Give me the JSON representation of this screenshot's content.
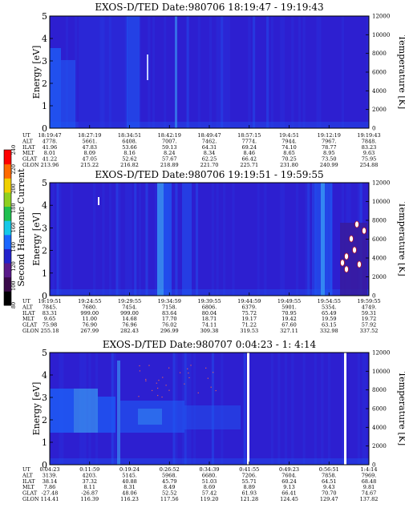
{
  "colors": {
    "background": "#2d1fd0",
    "low": "#2a2bd8",
    "mid": "#1e5cf5",
    "high": "#3aa4f6",
    "white": "#ffffff"
  },
  "colorbar": {
    "label": "Second Harmonic Current",
    "ticks": [
      "80",
      "100",
      "120",
      "140",
      "160",
      "180",
      "200",
      "220",
      "240"
    ],
    "colors": [
      "#000000",
      "#3a0a4a",
      "#5a1a8a",
      "#2222cc",
      "#1a66ff",
      "#15c8e8",
      "#20c050",
      "#8fd020",
      "#f0d000",
      "#ff6a00",
      "#ff0000"
    ]
  },
  "charts": [
    {
      "title": "EXOS-D/TED   Date:980706   18:19:47 - 19:19:43",
      "ylabel": "Energy [eV]",
      "y2label": "Temperature [K]",
      "yticks": [
        "0",
        "1",
        "2",
        "3",
        "4",
        "5"
      ],
      "y2ticks": [
        "0",
        "2000",
        "4000",
        "6000",
        "8000",
        "10000",
        "12000"
      ],
      "eph_rows": [
        {
          "label": "UT",
          "values": [
            "18:19:47",
            "18:27:19",
            "18:34:51",
            "18:42:19",
            "18:49:47",
            "18:57:15",
            "19:4:51",
            "19:12:19",
            "19:19:43"
          ]
        },
        {
          "label": "ALT",
          "values": [
            "4778.",
            "5661.",
            "6408.",
            "7007.",
            "7462.",
            "7774.",
            "7944.",
            "7967.",
            "7848."
          ]
        },
        {
          "label": "ILAT",
          "values": [
            "41.96",
            "47.83",
            "53.66",
            "59.13",
            "64.31",
            "69.24",
            "74.10",
            "78.77",
            "83.23"
          ]
        },
        {
          "label": "MLT",
          "values": [
            "8.01",
            "8.09",
            "8.16",
            "8.24",
            "8.34",
            "8.46",
            "8.65",
            "8.95",
            "9.63"
          ]
        },
        {
          "label": "GLAT",
          "values": [
            "41.22",
            "47.05",
            "52.62",
            "57.67",
            "62.25",
            "66.42",
            "70.25",
            "73.50",
            "75.95"
          ]
        },
        {
          "label": "GLON",
          "values": [
            "213.96",
            "215.22",
            "216.82",
            "218.89",
            "221.70",
            "225.71",
            "231.80",
            "240.99",
            "254.88"
          ]
        }
      ]
    },
    {
      "title": "EXOS-D/TED   Date:980706   19:19:51 - 19:59:55",
      "ylabel": "Energy [eV]",
      "y2label": "Temperature [K]",
      "yticks": [
        "0",
        "1",
        "2",
        "3",
        "4",
        "5"
      ],
      "y2ticks": [
        "0",
        "2000",
        "4000",
        "6000",
        "8000",
        "10000",
        "12000"
      ],
      "eph_rows": [
        {
          "label": "UT",
          "values": [
            "19:19:51",
            "19:24:55",
            "19:29:55",
            "19:34:59",
            "19:39:55",
            "19:44:59",
            "19:49:55",
            "19:54:55",
            "19:59:55"
          ]
        },
        {
          "label": "ALT",
          "values": [
            "7845.",
            "7680.",
            "7454.",
            "7158.",
            "6806.",
            "6379.",
            "5901.",
            "5354.",
            "4749."
          ]
        },
        {
          "label": "ILAT",
          "values": [
            "83.31",
            "999.00",
            "999.00",
            "83.64",
            "80.04",
            "75.72",
            "70.95",
            "65.49",
            "59.31"
          ]
        },
        {
          "label": "MLT",
          "values": [
            "9.65",
            "11.00",
            "14.68",
            "17.70",
            "18.71",
            "19.17",
            "19.42",
            "19.59",
            "19.72"
          ]
        },
        {
          "label": "GLAT",
          "values": [
            "75.98",
            "76.90",
            "76.96",
            "76.02",
            "74.11",
            "71.22",
            "67.60",
            "63.15",
            "57.92"
          ]
        },
        {
          "label": "GLON",
          "values": [
            "255.18",
            "267.99",
            "282.43",
            "296.99",
            "309.38",
            "319.53",
            "327.11",
            "332.98",
            "337.52"
          ]
        }
      ]
    },
    {
      "title": "EXOS-D/TED   Date:980707   0:04:23 -  1: 4:14",
      "ylabel": "Energy [eV]",
      "y2label": "Temperature [K]",
      "yticks": [
        "0",
        "1",
        "2",
        "3",
        "4",
        "5"
      ],
      "y2ticks": [
        "0",
        "2000",
        "4000",
        "6000",
        "8000",
        "10000",
        "12000"
      ],
      "eph_rows": [
        {
          "label": "UT",
          "values": [
            "0:04:23",
            "0:11:59",
            "0:19:24",
            "0:26:52",
            "0:34:39",
            "0:41:55",
            "0:49:23",
            "0:56:51",
            "1:4:14"
          ]
        },
        {
          "label": "ALT",
          "values": [
            "3139.",
            "4203.",
            "5145.",
            "5968.",
            "6680.",
            "7206.",
            "7604.",
            "7858.",
            "7969."
          ]
        },
        {
          "label": "ILAT",
          "values": [
            "38.14",
            "37.32",
            "40.88",
            "45.79",
            "51.03",
            "55.71",
            "60.24",
            "64.51",
            "68.48"
          ]
        },
        {
          "label": "MLT",
          "values": [
            "7.86",
            "8.11",
            "8.31",
            "8.49",
            "8.69",
            "8.89",
            "9.13",
            "9.43",
            "9.81"
          ]
        },
        {
          "label": "GLAT",
          "values": [
            "-27.48",
            "-26.87",
            "48.06",
            "52.52",
            "57.42",
            "61.93",
            "66.41",
            "70.70",
            "74.67"
          ]
        },
        {
          "label": "GLON",
          "values": [
            "114.41",
            "116.39",
            "116.23",
            "117.56",
            "119.20",
            "121.28",
            "124.45",
            "129.47",
            "137.82"
          ]
        }
      ]
    }
  ]
}
